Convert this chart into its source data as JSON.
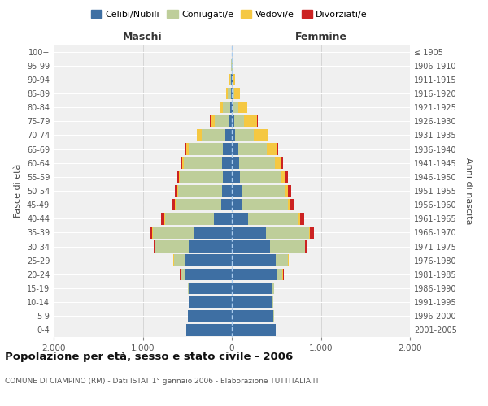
{
  "age_groups": [
    "0-4",
    "5-9",
    "10-14",
    "15-19",
    "20-24",
    "25-29",
    "30-34",
    "35-39",
    "40-44",
    "45-49",
    "50-54",
    "55-59",
    "60-64",
    "65-69",
    "70-74",
    "75-79",
    "80-84",
    "85-89",
    "90-94",
    "95-99",
    "100+"
  ],
  "birth_years": [
    "2001-2005",
    "1996-2000",
    "1991-1995",
    "1986-1990",
    "1981-1985",
    "1976-1980",
    "1971-1975",
    "1966-1970",
    "1961-1965",
    "1956-1960",
    "1951-1955",
    "1946-1950",
    "1941-1945",
    "1936-1940",
    "1931-1935",
    "1926-1930",
    "1921-1925",
    "1916-1920",
    "1911-1915",
    "1906-1910",
    "≤ 1905"
  ],
  "male": {
    "celibi": [
      510,
      490,
      480,
      480,
      520,
      530,
      480,
      420,
      200,
      120,
      110,
      100,
      110,
      100,
      70,
      30,
      15,
      10,
      5,
      2,
      2
    ],
    "coniugati": [
      2,
      3,
      5,
      10,
      50,
      120,
      380,
      470,
      550,
      510,
      490,
      480,
      430,
      380,
      270,
      160,
      90,
      40,
      15,
      3,
      2
    ],
    "vedovi": [
      1,
      1,
      2,
      2,
      5,
      5,
      5,
      5,
      5,
      10,
      10,
      10,
      20,
      30,
      50,
      50,
      25,
      15,
      5,
      0,
      0
    ],
    "divorziati": [
      1,
      1,
      1,
      2,
      5,
      5,
      15,
      30,
      35,
      25,
      25,
      20,
      10,
      10,
      5,
      5,
      3,
      2,
      0,
      0,
      0
    ]
  },
  "female": {
    "nubili": [
      490,
      470,
      460,
      460,
      510,
      490,
      430,
      380,
      180,
      120,
      110,
      90,
      80,
      70,
      40,
      25,
      15,
      10,
      5,
      2,
      2
    ],
    "coniugate": [
      2,
      3,
      5,
      15,
      60,
      140,
      390,
      490,
      570,
      510,
      490,
      460,
      400,
      320,
      210,
      110,
      60,
      20,
      10,
      3,
      2
    ],
    "vedove": [
      1,
      1,
      2,
      2,
      5,
      5,
      5,
      10,
      15,
      30,
      30,
      50,
      80,
      120,
      150,
      150,
      100,
      60,
      20,
      2,
      0
    ],
    "divorziate": [
      1,
      1,
      1,
      2,
      5,
      5,
      20,
      40,
      50,
      40,
      35,
      30,
      15,
      10,
      5,
      5,
      3,
      2,
      0,
      0,
      0
    ]
  },
  "colors": {
    "celibi_nubili": "#3E6FA3",
    "coniugati": "#BECE9A",
    "vedovi": "#F5C842",
    "divorziati": "#CC2222"
  },
  "xlim": 2000,
  "xticks": [
    -2000,
    -1000,
    0,
    1000,
    2000
  ],
  "xticklabels": [
    "2.000",
    "1.000",
    "0",
    "1.000",
    "2.000"
  ],
  "title": "Popolazione per età, sesso e stato civile - 2006",
  "subtitle": "COMUNE DI CIAMPINO (RM) - Dati ISTAT 1° gennaio 2006 - Elaborazione TUTTITALIA.IT",
  "ylabel_left": "Fasce di età",
  "ylabel_right": "Anni di nascita",
  "label_maschi": "Maschi",
  "label_femmine": "Femmine",
  "legend_labels": [
    "Celibi/Nubili",
    "Coniugati/e",
    "Vedovi/e",
    "Divorziati/e"
  ],
  "bg_color": "#FFFFFF",
  "plot_bg": "#F0F0F0"
}
